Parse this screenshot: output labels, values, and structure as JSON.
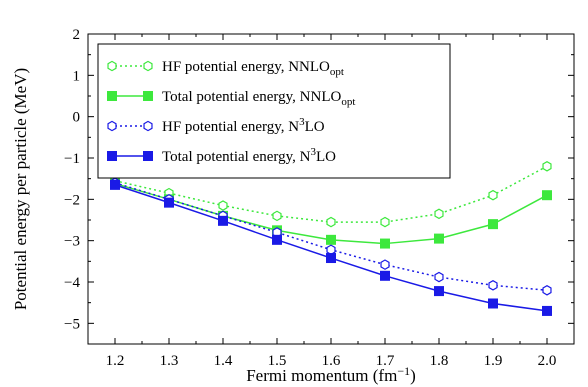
{
  "chart_data": {
    "type": "line",
    "xlabel": "Fermi momentum (fm",
    "xlabel_sup": "−1",
    "xlabel_end": ")",
    "ylabel": "Potential energy per particle (MeV)",
    "xlim": [
      1.15,
      2.05
    ],
    "ylim": [
      -5.5,
      2.0
    ],
    "xticks": [
      1.2,
      1.3,
      1.4,
      1.5,
      1.6,
      1.7,
      1.8,
      1.9,
      2.0
    ],
    "xtick_labels": [
      "1.2",
      "1.3",
      "1.4",
      "1.5",
      "1.6",
      "1.7",
      "1.8",
      "1.9",
      "2.0"
    ],
    "yticks": [
      2,
      1,
      0,
      -1,
      -2,
      -3,
      -4,
      -5
    ],
    "ytick_labels": [
      "2",
      "1",
      "0",
      "−1",
      "−2",
      "−3",
      "−4",
      "−5"
    ],
    "legend_position": "top-left",
    "x": [
      1.2,
      1.3,
      1.4,
      1.5,
      1.6,
      1.7,
      1.8,
      1.9,
      2.0
    ],
    "series": [
      {
        "name": "HF potential energy, NNLO",
        "name_sub": "opt",
        "color": "#3de83d",
        "line": "dotted",
        "marker": "open-hexagon",
        "values": [
          -1.55,
          -1.85,
          -2.15,
          -2.4,
          -2.55,
          -2.55,
          -2.35,
          -1.9,
          -1.2
        ]
      },
      {
        "name": "Total potential energy, NNLO",
        "name_sub": "opt",
        "color": "#3de83d",
        "line": "solid",
        "marker": "filled-square",
        "values": [
          -1.62,
          -2.0,
          -2.4,
          -2.75,
          -2.98,
          -3.07,
          -2.95,
          -2.6,
          -1.9
        ]
      },
      {
        "name_prefix": "HF potential energy, N",
        "name_sup": "3",
        "name_suffix": "LO",
        "color": "#1a1ae6",
        "line": "dotted",
        "marker": "open-hexagon",
        "values": [
          -1.6,
          -2.0,
          -2.4,
          -2.8,
          -3.22,
          -3.58,
          -3.88,
          -4.08,
          -4.2
        ]
      },
      {
        "name_prefix": "Total potential energy, N",
        "name_sup": "3",
        "name_suffix": "LO",
        "color": "#1a1ae6",
        "line": "solid",
        "marker": "filled-square",
        "values": [
          -1.65,
          -2.08,
          -2.52,
          -2.98,
          -3.42,
          -3.85,
          -4.22,
          -4.52,
          -4.7
        ]
      }
    ]
  }
}
